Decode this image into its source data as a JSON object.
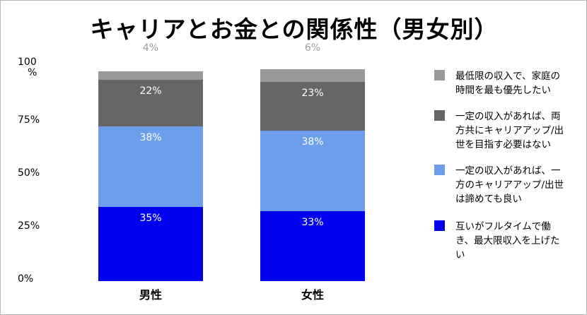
{
  "chart_data": {
    "type": "bar",
    "stacked": true,
    "title": "キャリアとお金との関係性（男女別）",
    "categories": [
      "男性",
      "女性"
    ],
    "yticks": [
      "0%",
      "25%",
      "50%",
      "75%",
      "100\n%"
    ],
    "ylim": [
      0,
      100
    ],
    "grid": false,
    "legend_position": "right",
    "series": [
      {
        "name": "互いがフルタイムで働き、最大限収入を上げたい",
        "legend_lines": [
          "互いがフルタイムで働",
          "き、最大限収入を上げた",
          "い"
        ],
        "color": "#0000ee",
        "values": [
          35,
          33
        ],
        "labels": [
          "35%",
          "33%"
        ]
      },
      {
        "name": "一定の収入があれば、一方のキャリアアップ/出世は諦めても良い",
        "legend_lines": [
          "一定の収入があれば、一",
          "方のキャリアアップ/出世",
          "は諦めても良い"
        ],
        "color": "#6d9eeb",
        "values": [
          38,
          38
        ],
        "labels": [
          "38%",
          "38%"
        ]
      },
      {
        "name": "一定の収入があれば、両方共にキャリアアップ/出世を目指す必要はない",
        "legend_lines": [
          "一定の収入があれば、両",
          "方共にキャリアアップ/出",
          "世を目指す必要はない"
        ],
        "color": "#666666",
        "values": [
          22,
          23
        ],
        "labels": [
          "22%",
          "23%"
        ]
      },
      {
        "name": "最低限の収入で、家庭の時間を最も優先したい",
        "legend_lines": [
          "最低限の収入で、家庭の",
          "時間を最も優先したい"
        ],
        "color": "#999999",
        "values": [
          4,
          6
        ],
        "labels": [
          "4%",
          "6%"
        ]
      }
    ]
  }
}
